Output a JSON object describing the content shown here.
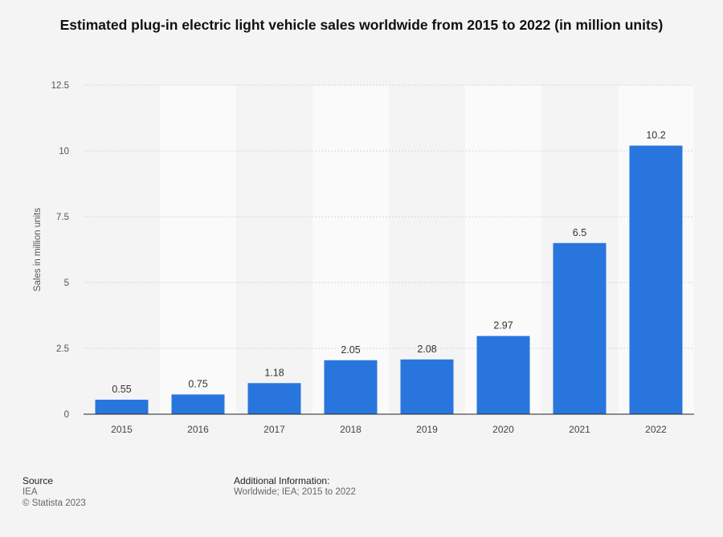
{
  "chart_data": {
    "type": "bar",
    "title": "Estimated plug-in electric light vehicle sales worldwide from 2015 to 2022 (in million units)",
    "xlabel": "",
    "ylabel": "Sales in million units",
    "categories": [
      "2015",
      "2016",
      "2017",
      "2018",
      "2019",
      "2020",
      "2021",
      "2022"
    ],
    "values": [
      0.55,
      0.75,
      1.18,
      2.05,
      2.08,
      2.97,
      6.5,
      10.2
    ],
    "value_labels": [
      "0.55",
      "0.75",
      "1.18",
      "2.05",
      "2.08",
      "2.97",
      "6.5",
      "10.2"
    ],
    "ylim": [
      0,
      12.5
    ],
    "yticks": [
      0,
      2.5,
      5,
      7.5,
      10,
      12.5
    ],
    "ytick_labels": [
      "0",
      "2.5",
      "5",
      "7.5",
      "10",
      "12.5"
    ],
    "grid": true,
    "legend": "none",
    "bar_color": "#2876dd",
    "alternate_band_color": "#fafafa"
  },
  "footer": {
    "source_heading": "Source",
    "source_value": "IEA",
    "copyright": "© Statista 2023",
    "additional_heading": "Additional Information:",
    "additional_value": "Worldwide; IEA; 2015 to 2022"
  }
}
